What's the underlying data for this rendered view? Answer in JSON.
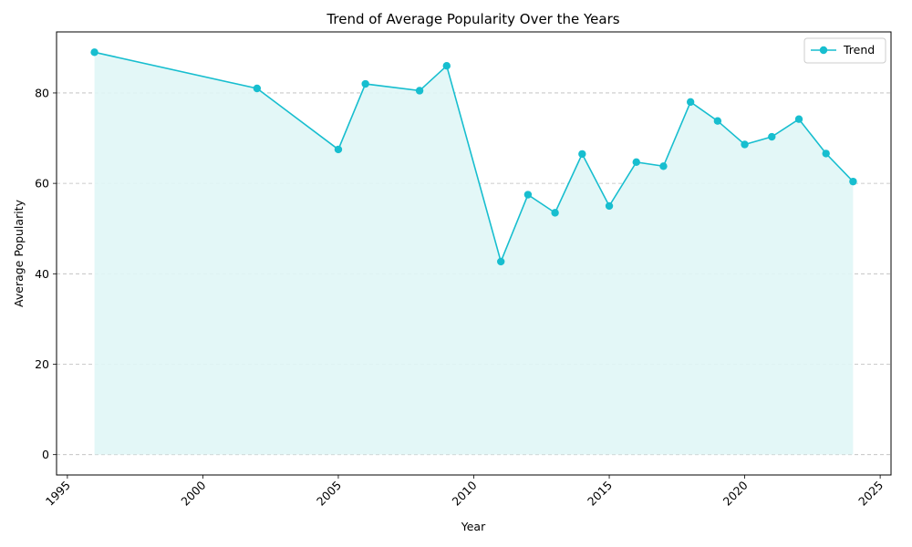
{
  "chart_data": {
    "type": "line",
    "title": "Trend of Average Popularity Over the Years",
    "xlabel": "Year",
    "ylabel": "Average Popularity",
    "xlim": [
      1994.6,
      2025.4
    ],
    "ylim": [
      -4.5,
      93.5
    ],
    "xticks": [
      1995,
      2000,
      2005,
      2010,
      2015,
      2020,
      2025
    ],
    "yticks": [
      0,
      20,
      40,
      60,
      80
    ],
    "x_tick_rotation_deg": 45,
    "grid": "y-dashed",
    "area_fill": true,
    "legend_position": "top-right",
    "colors": {
      "line": "#17BECF",
      "marker": "#17BECF",
      "fill": "#E0F6F6",
      "grid": "#BBBBBB"
    },
    "series": [
      {
        "name": "Trend",
        "x": [
          1996,
          2002,
          2005,
          2006,
          2008,
          2009,
          2011,
          2012,
          2013,
          2014,
          2015,
          2016,
          2017,
          2018,
          2019,
          2020,
          2021,
          2022,
          2023,
          2024
        ],
        "y": [
          89.0,
          81.0,
          67.5,
          82.0,
          80.5,
          86.0,
          42.7,
          57.5,
          53.5,
          66.5,
          55.0,
          64.7,
          63.8,
          78.0,
          73.8,
          68.6,
          70.3,
          74.2,
          66.6,
          60.4
        ]
      }
    ]
  }
}
